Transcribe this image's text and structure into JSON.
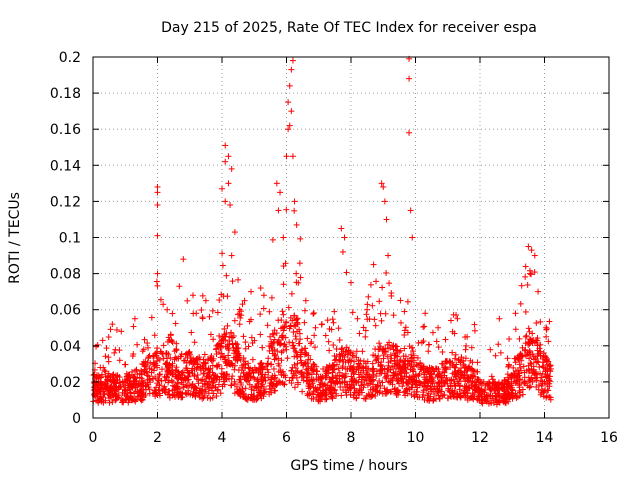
{
  "chart_data": {
    "type": "scatter",
    "title": "Day 215 of 2025, Rate Of TEC Index for receiver espa",
    "xlabel": "GPS time / hours",
    "ylabel": "ROTI / TECUs",
    "xlim": [
      0,
      16
    ],
    "ylim": [
      0,
      0.2
    ],
    "xticks": [
      0,
      2,
      4,
      6,
      8,
      10,
      12,
      14,
      16
    ],
    "xtick_labels": [
      "0",
      "2",
      "4",
      "6",
      "8",
      "10",
      "12",
      "14",
      "16"
    ],
    "yticks": [
      0,
      0.02,
      0.04,
      0.06,
      0.08,
      0.1,
      0.12,
      0.14,
      0.16,
      0.18,
      0.2
    ],
    "ytick_labels": [
      "0",
      "0.02",
      "0.04",
      "0.06",
      "0.08",
      "0.1",
      "0.12",
      "0.14",
      "0.16",
      "0.18",
      "0.2"
    ],
    "grid": true,
    "marker": "+",
    "color": "#ff0000",
    "data_range_hours": [
      0,
      14.2
    ],
    "series": [
      {
        "name": "ROTI",
        "x": [
          2.0,
          2.0,
          2.0,
          2.0,
          2.0,
          4.1,
          4.2,
          4.1,
          4.3,
          4.2,
          4.0,
          4.1,
          4.25,
          4.4,
          4.3,
          5.7,
          5.8,
          5.75,
          5.9,
          6.0,
          6.05,
          6.1,
          6.15,
          6.2,
          6.15,
          6.1,
          6.05,
          6.2,
          6.25,
          6.3,
          7.7,
          7.8,
          7.75,
          8.0,
          8.95,
          9.0,
          9.05,
          9.1,
          9.15,
          9.8,
          9.8,
          9.8,
          9.85,
          9.9,
          13.5,
          13.6,
          13.7,
          13.55,
          13.8,
          2.8,
          3.1,
          3.5,
          4.9,
          5.3,
          6.6,
          7.1,
          8.5,
          10.3,
          11.3,
          0.3,
          0.6,
          1.3,
          2.3,
          3.2,
          4.7,
          5.2,
          6.9,
          7.4,
          8.2,
          8.7,
          10.7,
          11.1,
          11.6,
          12.6,
          13.1,
          14.05
        ],
        "y": [
          0.128,
          0.125,
          0.118,
          0.101,
          0.08,
          0.151,
          0.145,
          0.142,
          0.138,
          0.13,
          0.127,
          0.12,
          0.118,
          0.103,
          0.09,
          0.13,
          0.125,
          0.115,
          0.1,
          0.145,
          0.16,
          0.162,
          0.17,
          0.198,
          0.193,
          0.184,
          0.175,
          0.145,
          0.12,
          0.08,
          0.105,
          0.1,
          0.092,
          0.075,
          0.13,
          0.128,
          0.12,
          0.11,
          0.09,
          0.199,
          0.188,
          0.158,
          0.115,
          0.1,
          0.095,
          0.093,
          0.09,
          0.08,
          0.07,
          0.088,
          0.068,
          0.065,
          0.07,
          0.068,
          0.065,
          0.052,
          0.06,
          0.058,
          0.055,
          0.043,
          0.052,
          0.055,
          0.06,
          0.058,
          0.065,
          0.072,
          0.05,
          0.049,
          0.055,
          0.085,
          0.05,
          0.054,
          0.045,
          0.055,
          0.058,
          0.045
        ]
      }
    ]
  }
}
